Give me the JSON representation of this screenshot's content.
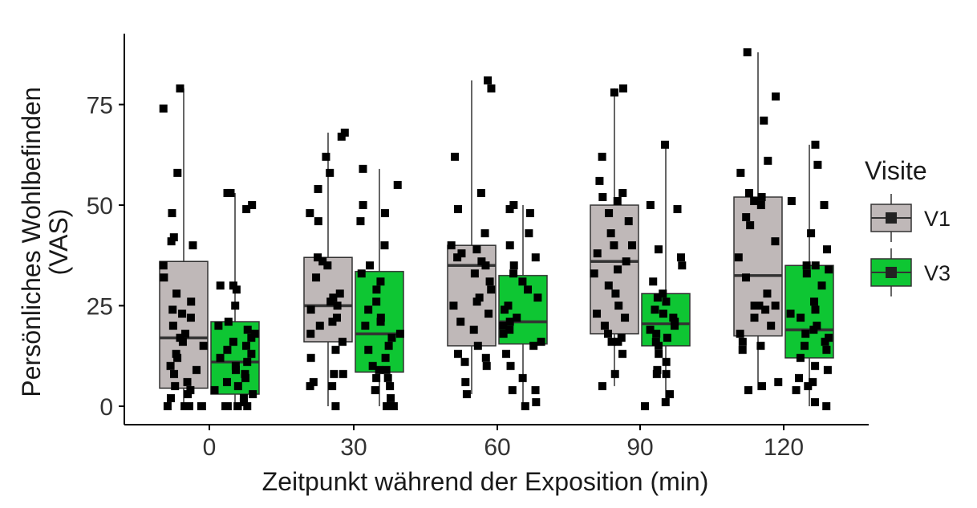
{
  "chart_data": {
    "type": "boxplot",
    "xlabel": "Zeitpunkt während der Exposition (min)",
    "ylabel": [
      "Persönliches Wohlbefinden",
      "(VAS)"
    ],
    "categories": [
      "0",
      "30",
      "60",
      "90",
      "120"
    ],
    "yticks": [
      0,
      25,
      50,
      75
    ],
    "ylim": [
      -5,
      92
    ],
    "grid": false,
    "legend": {
      "title": "Visite",
      "position": "right"
    },
    "series": [
      {
        "name": "V1",
        "color": "#bfb8b8",
        "boxes": [
          {
            "category": "0",
            "q1": 4.5,
            "median": 17,
            "q3": 36,
            "whisker_low": 0,
            "whisker_high": 79
          },
          {
            "category": "30",
            "q1": 16,
            "median": 25,
            "q3": 37,
            "whisker_low": 0,
            "whisker_high": 68
          },
          {
            "category": "60",
            "q1": 15,
            "median": 35,
            "q3": 40,
            "whisker_low": 3,
            "whisker_high": 81
          },
          {
            "category": "90",
            "q1": 18,
            "median": 36,
            "q3": 50,
            "whisker_low": 5,
            "whisker_high": 79
          },
          {
            "category": "120",
            "q1": 17.5,
            "median": 32.5,
            "q3": 52,
            "whisker_low": 4,
            "whisker_high": 88
          }
        ],
        "points": [
          [
            79,
            74,
            58,
            48,
            42,
            41,
            40,
            35,
            32,
            28,
            26,
            24,
            23,
            22,
            20,
            18,
            17,
            16,
            15,
            13,
            12,
            10,
            9,
            8,
            6,
            5,
            4,
            3,
            2,
            0,
            0,
            0,
            0,
            0
          ],
          [
            68,
            67,
            62,
            58,
            54,
            48,
            46,
            37,
            36,
            35,
            32,
            28,
            27,
            26,
            25,
            24,
            22,
            21,
            20,
            18,
            16,
            14,
            12,
            8,
            8,
            6,
            5,
            5,
            0
          ],
          [
            81,
            79,
            62,
            53,
            49,
            43,
            40,
            39,
            38,
            37,
            36,
            35,
            33,
            31,
            29,
            27,
            26,
            25,
            23,
            21,
            19,
            15,
            13,
            12,
            11,
            10,
            6,
            3
          ],
          [
            79,
            78,
            62,
            56,
            53,
            52,
            51,
            48,
            46,
            43,
            40,
            40,
            38,
            36,
            34,
            33,
            30,
            28,
            25,
            23,
            22,
            20,
            18,
            17,
            16,
            16,
            13,
            8,
            5
          ],
          [
            88,
            77,
            71,
            61,
            58,
            53,
            52,
            51,
            50,
            47,
            45,
            41,
            37,
            32,
            28,
            25,
            25,
            25,
            25,
            24,
            22,
            20,
            18,
            16,
            15,
            14,
            6,
            5,
            4
          ]
        ]
      },
      {
        "name": "V3",
        "color": "#0ec633",
        "boxes": [
          {
            "category": "0",
            "q1": 3,
            "median": 11,
            "q3": 21,
            "whisker_low": 0,
            "whisker_high": 53
          },
          {
            "category": "30",
            "q1": 8.5,
            "median": 18,
            "q3": 33.5,
            "whisker_low": 0,
            "whisker_high": 59
          },
          {
            "category": "60",
            "q1": 15.5,
            "median": 21,
            "q3": 32.5,
            "whisker_low": 0,
            "whisker_high": 50
          },
          {
            "category": "90",
            "q1": 15,
            "median": 20.5,
            "q3": 28,
            "whisker_low": 0,
            "whisker_high": 65
          },
          {
            "category": "120",
            "q1": 12,
            "median": 19,
            "q3": 35,
            "whisker_low": 0,
            "whisker_high": 65
          }
        ],
        "points": [
          [
            53,
            53,
            50,
            49,
            30,
            30,
            29,
            25,
            21,
            20,
            19,
            18,
            17,
            16,
            15,
            14,
            13,
            12,
            11,
            10,
            9,
            8,
            7,
            6,
            5,
            4,
            3,
            2,
            1,
            0,
            0,
            0,
            0,
            0
          ],
          [
            59,
            55,
            50,
            48,
            46,
            40,
            35,
            33,
            31,
            29,
            26,
            24,
            22,
            21,
            20,
            18,
            17,
            15,
            14,
            12,
            10,
            9,
            9,
            7,
            7,
            5,
            4,
            2,
            0,
            0
          ],
          [
            50,
            49,
            48,
            43,
            40,
            37,
            35,
            33,
            31,
            29,
            27,
            25,
            24,
            22,
            21,
            20,
            19,
            18,
            16,
            15,
            13,
            10,
            7,
            4,
            4,
            1,
            0
          ],
          [
            65,
            50,
            49,
            39,
            37,
            35,
            31,
            28,
            27,
            26,
            24,
            23,
            22,
            21,
            20,
            19,
            18,
            17,
            16,
            15,
            13,
            11,
            9,
            8,
            8,
            3,
            1,
            0
          ],
          [
            65,
            60,
            51,
            50,
            43,
            39,
            35,
            35,
            34,
            33,
            30,
            26,
            24,
            23,
            22,
            20,
            19,
            18,
            17,
            16,
            15,
            14,
            12,
            10,
            9,
            7,
            6,
            5,
            4,
            1,
            0
          ]
        ]
      }
    ]
  }
}
